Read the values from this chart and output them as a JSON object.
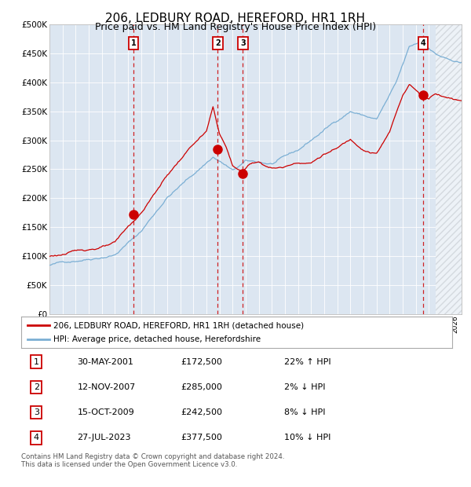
{
  "title": "206, LEDBURY ROAD, HEREFORD, HR1 1RH",
  "subtitle": "Price paid vs. HM Land Registry's House Price Index (HPI)",
  "ylim": [
    0,
    500000
  ],
  "yticks": [
    0,
    50000,
    100000,
    150000,
    200000,
    250000,
    300000,
    350000,
    400000,
    450000,
    500000
  ],
  "ytick_labels": [
    "£0",
    "£50K",
    "£100K",
    "£150K",
    "£200K",
    "£250K",
    "£300K",
    "£350K",
    "£400K",
    "£450K",
    "£500K"
  ],
  "xlim_start": 1995.0,
  "xlim_end": 2026.5,
  "background_color": "#dce6f1",
  "hpi_line_color": "#7bafd4",
  "price_line_color": "#cc0000",
  "marker_color": "#cc0000",
  "vline_color": "#cc0000",
  "sale_dates_decimal": [
    2001.41,
    2007.87,
    2009.79,
    2023.57
  ],
  "sale_prices": [
    172500,
    285000,
    242500,
    377500
  ],
  "sale_labels": [
    "1",
    "2",
    "3",
    "4"
  ],
  "legend_line1": "206, LEDBURY ROAD, HEREFORD, HR1 1RH (detached house)",
  "legend_line2": "HPI: Average price, detached house, Herefordshire",
  "table_data": [
    [
      "1",
      "30-MAY-2001",
      "£172,500",
      "22% ↑ HPI"
    ],
    [
      "2",
      "12-NOV-2007",
      "£285,000",
      "2% ↓ HPI"
    ],
    [
      "3",
      "15-OCT-2009",
      "£242,500",
      "8% ↓ HPI"
    ],
    [
      "4",
      "27-JUL-2023",
      "£377,500",
      "10% ↓ HPI"
    ]
  ],
  "footer": "Contains HM Land Registry data © Crown copyright and database right 2024.\nThis data is licensed under the Open Government Licence v3.0.",
  "hatch_region_start": 2024.5,
  "title_fontsize": 11,
  "subtitle_fontsize": 9
}
